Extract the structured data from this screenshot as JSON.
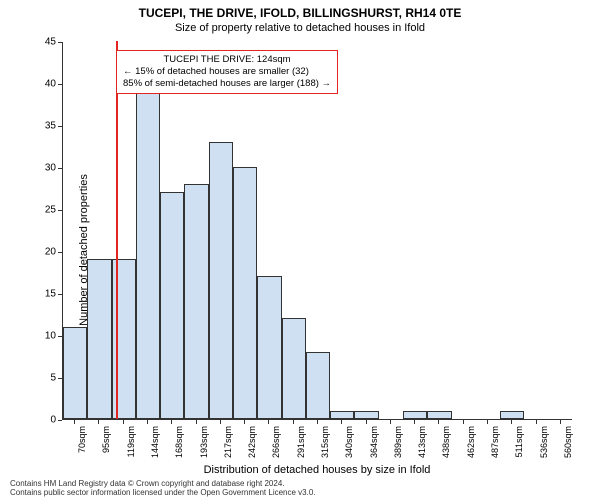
{
  "chart": {
    "type": "histogram",
    "title": "TUCEPI, THE DRIVE, IFOLD, BILLINGSHURST, RH14 0TE",
    "subtitle": "Size of property relative to detached houses in Ifold",
    "ylabel": "Number of detached properties",
    "xlabel": "Distribution of detached houses by size in Ifold",
    "title_fontsize": 12,
    "subtitle_fontsize": 11,
    "label_fontsize": 11,
    "tick_fontsize": 10,
    "background_color": "#ffffff",
    "bar_fill": "#cfe0f3",
    "bar_border": "#333333",
    "marker_color": "#e2261f",
    "ylim": [
      0,
      45
    ],
    "ytick_step": 5,
    "yticks": [
      0,
      5,
      10,
      15,
      20,
      25,
      30,
      35,
      40,
      45
    ],
    "xticks": [
      "70sqm",
      "95sqm",
      "119sqm",
      "144sqm",
      "168sqm",
      "193sqm",
      "217sqm",
      "242sqm",
      "266sqm",
      "291sqm",
      "315sqm",
      "340sqm",
      "364sqm",
      "389sqm",
      "413sqm",
      "438sqm",
      "462sqm",
      "487sqm",
      "511sqm",
      "536sqm",
      "560sqm"
    ],
    "values": [
      11,
      19,
      19,
      43,
      27,
      28,
      33,
      30,
      17,
      12,
      8,
      1,
      1,
      0,
      1,
      1,
      0,
      0,
      1,
      0,
      0
    ],
    "bar_count": 21,
    "marker_at_tick_index": 2.2,
    "annotation": {
      "line1": "TUCEPI THE DRIVE: 124sqm",
      "line2": "← 15% of detached houses are smaller (32)",
      "line3": "85% of semi-detached houses are larger (188) →",
      "fontsize": 9.5,
      "border_color": "#e2261f"
    }
  },
  "attribution": {
    "line1": "Contains HM Land Registry data © Crown copyright and database right 2024.",
    "line2": "Contains public sector information licensed under the Open Government Licence v3.0."
  }
}
